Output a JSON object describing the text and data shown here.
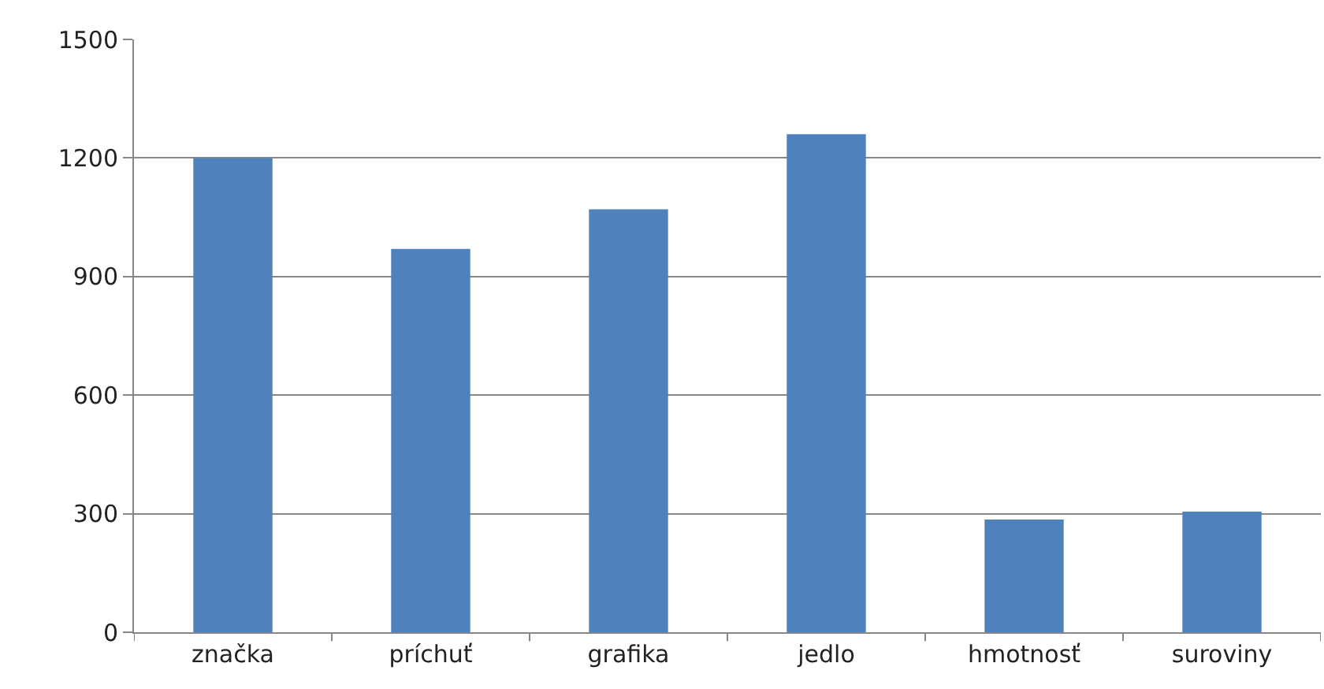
{
  "chart_data": {
    "type": "bar",
    "categories": [
      "značka",
      "príchuť",
      "grafika",
      "jedlo",
      "hmotnosť",
      "suroviny"
    ],
    "values": [
      1200,
      970,
      1070,
      1260,
      285,
      305
    ],
    "color": "#4f81bd",
    "ylim": [
      0,
      1500
    ],
    "yticks": [
      0,
      300,
      600,
      900,
      1200,
      1500
    ],
    "grid": "y",
    "legend": false
  }
}
